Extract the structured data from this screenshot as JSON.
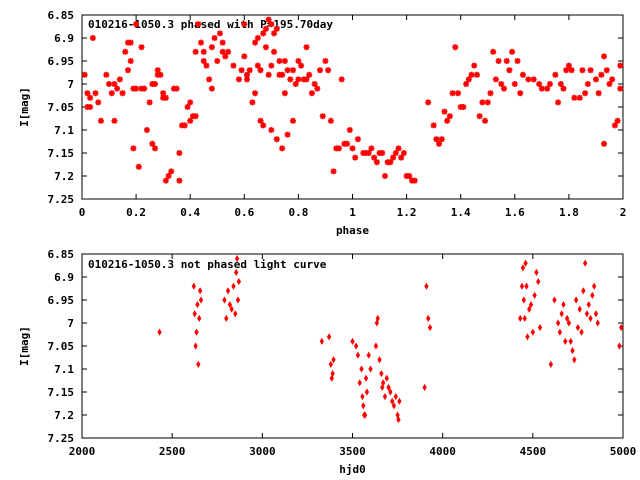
{
  "colors": {
    "points": "#ff0000",
    "axes": "#000000",
    "background": "#ffffff"
  },
  "chart_data": [
    {
      "type": "scatter",
      "title": "010216-1050.3 phased with P=195.70day",
      "xlabel": "phase",
      "ylabel": "I[mag]",
      "xlim": [
        0,
        2
      ],
      "ylim": [
        6.85,
        7.25
      ],
      "y_inverted": true,
      "grid": false,
      "marker": "asterisk",
      "x_ticks": [
        "0",
        "0.2",
        "0.4",
        "0.6",
        "0.8",
        "1",
        "1.2",
        "1.4",
        "1.6",
        "1.8",
        "2"
      ],
      "y_ticks": [
        "6.85",
        "6.9",
        "6.95",
        "7",
        "7.05",
        "7.1",
        "7.15",
        "7.2",
        "7.25"
      ],
      "points": [
        [
          0.01,
          6.98
        ],
        [
          0.02,
          7.02
        ],
        [
          0.02,
          7.05
        ],
        [
          0.03,
          7.03
        ],
        [
          0.03,
          7.05
        ],
        [
          0.04,
          6.9
        ],
        [
          0.05,
          7.02
        ],
        [
          0.06,
          7.04
        ],
        [
          0.07,
          7.08
        ],
        [
          0.09,
          6.98
        ],
        [
          0.1,
          7.0
        ],
        [
          0.11,
          7.02
        ],
        [
          0.12,
          7.0
        ],
        [
          0.12,
          7.08
        ],
        [
          0.13,
          7.01
        ],
        [
          0.14,
          6.99
        ],
        [
          0.15,
          7.02
        ],
        [
          0.16,
          6.93
        ],
        [
          0.17,
          6.97
        ],
        [
          0.17,
          6.91
        ],
        [
          0.18,
          6.91
        ],
        [
          0.18,
          6.95
        ],
        [
          0.19,
          7.01
        ],
        [
          0.19,
          7.14
        ],
        [
          0.2,
          7.01
        ],
        [
          0.2,
          6.87
        ],
        [
          0.21,
          7.18
        ],
        [
          0.22,
          6.92
        ],
        [
          0.22,
          7.01
        ],
        [
          0.23,
          7.01
        ],
        [
          0.24,
          7.1
        ],
        [
          0.25,
          7.04
        ],
        [
          0.26,
          7.0
        ],
        [
          0.26,
          7.13
        ],
        [
          0.27,
          7.0
        ],
        [
          0.27,
          7.14
        ],
        [
          0.28,
          6.98
        ],
        [
          0.28,
          6.97
        ],
        [
          0.29,
          6.98
        ],
        [
          0.3,
          7.02
        ],
        [
          0.3,
          7.03
        ],
        [
          0.31,
          7.21
        ],
        [
          0.31,
          7.03
        ],
        [
          0.32,
          7.2
        ],
        [
          0.33,
          7.19
        ],
        [
          0.34,
          7.01
        ],
        [
          0.35,
          7.01
        ],
        [
          0.36,
          7.21
        ],
        [
          0.36,
          7.15
        ],
        [
          0.37,
          7.09
        ],
        [
          0.38,
          7.09
        ],
        [
          0.39,
          7.05
        ],
        [
          0.4,
          7.08
        ],
        [
          0.4,
          7.04
        ],
        [
          0.41,
          7.07
        ],
        [
          0.42,
          7.07
        ],
        [
          0.42,
          6.93
        ],
        [
          0.43,
          6.87
        ],
        [
          0.44,
          6.91
        ],
        [
          0.45,
          6.93
        ],
        [
          0.45,
          6.95
        ],
        [
          0.46,
          6.96
        ],
        [
          0.47,
          6.99
        ],
        [
          0.48,
          7.01
        ],
        [
          0.48,
          6.92
        ],
        [
          0.49,
          6.9
        ],
        [
          0.5,
          6.95
        ],
        [
          0.51,
          6.89
        ],
        [
          0.52,
          6.91
        ],
        [
          0.52,
          6.93
        ],
        [
          0.53,
          6.94
        ],
        [
          0.54,
          6.93
        ],
        [
          0.56,
          6.96
        ],
        [
          0.58,
          6.99
        ],
        [
          0.59,
          6.97
        ],
        [
          0.6,
          6.87
        ],
        [
          0.6,
          6.94
        ],
        [
          0.61,
          6.99
        ],
        [
          0.61,
          6.98
        ],
        [
          0.62,
          6.97
        ],
        [
          0.63,
          7.04
        ],
        [
          0.64,
          7.02
        ],
        [
          0.64,
          6.91
        ],
        [
          0.65,
          6.96
        ],
        [
          0.65,
          6.9
        ],
        [
          0.66,
          7.08
        ],
        [
          0.66,
          6.97
        ],
        [
          0.67,
          6.89
        ],
        [
          0.67,
          7.09
        ],
        [
          0.68,
          6.92
        ],
        [
          0.68,
          6.88
        ],
        [
          0.69,
          6.86
        ],
        [
          0.69,
          6.98
        ],
        [
          0.7,
          6.87
        ],
        [
          0.7,
          7.1
        ],
        [
          0.7,
          6.96
        ],
        [
          0.71,
          6.89
        ],
        [
          0.71,
          6.93
        ],
        [
          0.72,
          6.88
        ],
        [
          0.72,
          7.12
        ],
        [
          0.73,
          6.95
        ],
        [
          0.73,
          6.98
        ],
        [
          0.74,
          7.14
        ],
        [
          0.74,
          6.98
        ],
        [
          0.75,
          6.95
        ],
        [
          0.75,
          7.02
        ],
        [
          0.76,
          7.11
        ],
        [
          0.76,
          6.97
        ],
        [
          0.77,
          6.99
        ],
        [
          0.78,
          7.08
        ],
        [
          0.78,
          6.97
        ],
        [
          0.79,
          7.0
        ],
        [
          0.8,
          6.95
        ],
        [
          0.8,
          6.99
        ],
        [
          0.81,
          6.96
        ],
        [
          0.82,
          6.99
        ],
        [
          0.83,
          6.92
        ],
        [
          0.83,
          6.99
        ],
        [
          0.84,
          6.98
        ],
        [
          0.85,
          7.02
        ],
        [
          0.86,
          7.0
        ],
        [
          0.87,
          7.01
        ],
        [
          0.88,
          6.97
        ],
        [
          0.89,
          7.07
        ],
        [
          0.9,
          6.95
        ],
        [
          0.91,
          6.97
        ],
        [
          0.92,
          7.08
        ],
        [
          0.93,
          7.19
        ],
        [
          0.94,
          7.14
        ],
        [
          0.95,
          7.14
        ],
        [
          0.96,
          6.99
        ],
        [
          0.97,
          7.13
        ],
        [
          0.98,
          7.13
        ],
        [
          0.99,
          7.1
        ],
        [
          1.0,
          7.14
        ],
        [
          1.01,
          7.16
        ],
        [
          1.02,
          7.12
        ],
        [
          1.04,
          7.15
        ],
        [
          1.05,
          7.15
        ],
        [
          1.06,
          7.15
        ],
        [
          1.07,
          7.14
        ],
        [
          1.08,
          7.16
        ],
        [
          1.09,
          7.17
        ],
        [
          1.1,
          7.15
        ],
        [
          1.11,
          7.15
        ],
        [
          1.12,
          7.2
        ],
        [
          1.13,
          7.17
        ],
        [
          1.14,
          7.17
        ],
        [
          1.15,
          7.16
        ],
        [
          1.16,
          7.15
        ],
        [
          1.17,
          7.14
        ],
        [
          1.18,
          7.16
        ],
        [
          1.19,
          7.15
        ],
        [
          1.2,
          7.2
        ],
        [
          1.21,
          7.2
        ],
        [
          1.22,
          7.21
        ],
        [
          1.23,
          7.21
        ],
        [
          1.28,
          7.04
        ],
        [
          1.3,
          7.09
        ],
        [
          1.31,
          7.12
        ],
        [
          1.32,
          7.13
        ],
        [
          1.33,
          7.12
        ],
        [
          1.34,
          7.06
        ],
        [
          1.35,
          7.08
        ],
        [
          1.36,
          7.07
        ],
        [
          1.37,
          7.02
        ],
        [
          1.38,
          6.92
        ],
        [
          1.39,
          7.02
        ],
        [
          1.4,
          7.05
        ],
        [
          1.41,
          7.05
        ],
        [
          1.42,
          7.0
        ],
        [
          1.43,
          6.99
        ],
        [
          1.44,
          6.98
        ],
        [
          1.45,
          6.96
        ],
        [
          1.46,
          6.98
        ],
        [
          1.47,
          7.07
        ],
        [
          1.48,
          7.04
        ],
        [
          1.49,
          7.08
        ],
        [
          1.5,
          7.04
        ],
        [
          1.51,
          7.02
        ],
        [
          1.52,
          6.93
        ],
        [
          1.53,
          6.99
        ],
        [
          1.54,
          6.95
        ],
        [
          1.55,
          7.0
        ],
        [
          1.56,
          7.01
        ],
        [
          1.57,
          6.95
        ],
        [
          1.58,
          6.97
        ],
        [
          1.59,
          6.93
        ],
        [
          1.6,
          7.0
        ],
        [
          1.61,
          6.95
        ],
        [
          1.62,
          7.02
        ],
        [
          1.63,
          6.98
        ],
        [
          1.65,
          6.99
        ],
        [
          1.67,
          6.99
        ],
        [
          1.69,
          7.0
        ],
        [
          1.7,
          7.01
        ],
        [
          1.72,
          7.01
        ],
        [
          1.73,
          7.0
        ],
        [
          1.75,
          6.98
        ],
        [
          1.76,
          7.04
        ],
        [
          1.77,
          7.0
        ],
        [
          1.78,
          7.01
        ],
        [
          1.79,
          6.97
        ],
        [
          1.8,
          6.96
        ],
        [
          1.81,
          6.97
        ],
        [
          1.82,
          7.03
        ],
        [
          1.84,
          7.03
        ],
        [
          1.85,
          6.97
        ],
        [
          1.86,
          7.02
        ],
        [
          1.87,
          7.0
        ],
        [
          1.88,
          6.97
        ],
        [
          1.9,
          6.99
        ],
        [
          1.91,
          7.02
        ],
        [
          1.92,
          6.98
        ],
        [
          1.93,
          6.94
        ],
        [
          1.93,
          7.13
        ],
        [
          1.94,
          6.97
        ],
        [
          1.95,
          7.0
        ],
        [
          1.96,
          6.99
        ],
        [
          1.97,
          7.09
        ],
        [
          1.98,
          7.08
        ],
        [
          1.99,
          6.96
        ],
        [
          1.99,
          7.01
        ]
      ]
    },
    {
      "type": "scatter",
      "title": "010216-1050.3 not phased light curve",
      "xlabel": "hjd0",
      "ylabel": "I[mag]",
      "xlim": [
        2000,
        5000
      ],
      "ylim": [
        6.85,
        7.25
      ],
      "y_inverted": true,
      "grid": false,
      "marker": "diamond",
      "x_ticks": [
        "2000",
        "2500",
        "3000",
        "3500",
        "4000",
        "4500",
        "5000"
      ],
      "y_ticks": [
        "6.85",
        "6.9",
        "6.95",
        "7",
        "7.05",
        "7.1",
        "7.15",
        "7.2",
        "7.25"
      ],
      "points": [
        [
          2430,
          7.02
        ],
        [
          2620,
          6.92
        ],
        [
          2625,
          6.98
        ],
        [
          2630,
          7.05
        ],
        [
          2635,
          7.02
        ],
        [
          2640,
          6.96
        ],
        [
          2645,
          7.09
        ],
        [
          2650,
          6.99
        ],
        [
          2655,
          6.93
        ],
        [
          2660,
          6.95
        ],
        [
          2790,
          6.95
        ],
        [
          2800,
          6.99
        ],
        [
          2810,
          6.93
        ],
        [
          2820,
          6.96
        ],
        [
          2830,
          6.97
        ],
        [
          2840,
          6.92
        ],
        [
          2850,
          6.98
        ],
        [
          2855,
          6.89
        ],
        [
          2860,
          6.86
        ],
        [
          2865,
          6.95
        ],
        [
          2870,
          6.91
        ],
        [
          3330,
          7.04
        ],
        [
          3370,
          7.03
        ],
        [
          3380,
          7.09
        ],
        [
          3385,
          7.12
        ],
        [
          3390,
          7.11
        ],
        [
          3395,
          7.08
        ],
        [
          3500,
          7.04
        ],
        [
          3520,
          7.05
        ],
        [
          3530,
          7.07
        ],
        [
          3540,
          7.13
        ],
        [
          3550,
          7.1
        ],
        [
          3555,
          7.16
        ],
        [
          3560,
          7.18
        ],
        [
          3565,
          7.2
        ],
        [
          3570,
          7.2
        ],
        [
          3575,
          7.12
        ],
        [
          3580,
          7.15
        ],
        [
          3590,
          7.07
        ],
        [
          3600,
          7.1
        ],
        [
          3630,
          7.05
        ],
        [
          3635,
          7.0
        ],
        [
          3640,
          6.99
        ],
        [
          3650,
          7.08
        ],
        [
          3660,
          7.11
        ],
        [
          3665,
          7.14
        ],
        [
          3670,
          7.13
        ],
        [
          3680,
          7.16
        ],
        [
          3690,
          7.12
        ],
        [
          3700,
          7.14
        ],
        [
          3710,
          7.15
        ],
        [
          3720,
          7.17
        ],
        [
          3730,
          7.18
        ],
        [
          3740,
          7.16
        ],
        [
          3750,
          7.2
        ],
        [
          3755,
          7.21
        ],
        [
          3760,
          7.17
        ],
        [
          3900,
          7.14
        ],
        [
          3910,
          6.92
        ],
        [
          3920,
          6.99
        ],
        [
          3930,
          7.01
        ],
        [
          4430,
          6.99
        ],
        [
          4440,
          6.92
        ],
        [
          4445,
          6.88
        ],
        [
          4450,
          6.95
        ],
        [
          4455,
          6.99
        ],
        [
          4460,
          6.87
        ],
        [
          4465,
          6.92
        ],
        [
          4470,
          7.03
        ],
        [
          4480,
          6.97
        ],
        [
          4490,
          6.96
        ],
        [
          4500,
          7.02
        ],
        [
          4510,
          6.94
        ],
        [
          4520,
          6.89
        ],
        [
          4530,
          6.91
        ],
        [
          4540,
          7.01
        ],
        [
          4600,
          7.09
        ],
        [
          4620,
          6.95
        ],
        [
          4640,
          7.0
        ],
        [
          4650,
          7.02
        ],
        [
          4660,
          6.98
        ],
        [
          4670,
          6.96
        ],
        [
          4680,
          7.04
        ],
        [
          4690,
          6.99
        ],
        [
          4700,
          7.0
        ],
        [
          4710,
          7.04
        ],
        [
          4720,
          7.06
        ],
        [
          4730,
          7.08
        ],
        [
          4740,
          6.95
        ],
        [
          4750,
          7.01
        ],
        [
          4760,
          6.97
        ],
        [
          4770,
          7.02
        ],
        [
          4780,
          6.93
        ],
        [
          4790,
          6.87
        ],
        [
          4800,
          6.98
        ],
        [
          4810,
          6.96
        ],
        [
          4820,
          6.99
        ],
        [
          4830,
          6.94
        ],
        [
          4840,
          6.92
        ],
        [
          4850,
          6.98
        ],
        [
          4860,
          7.0
        ],
        [
          4980,
          7.05
        ],
        [
          4990,
          7.01
        ]
      ]
    }
  ]
}
